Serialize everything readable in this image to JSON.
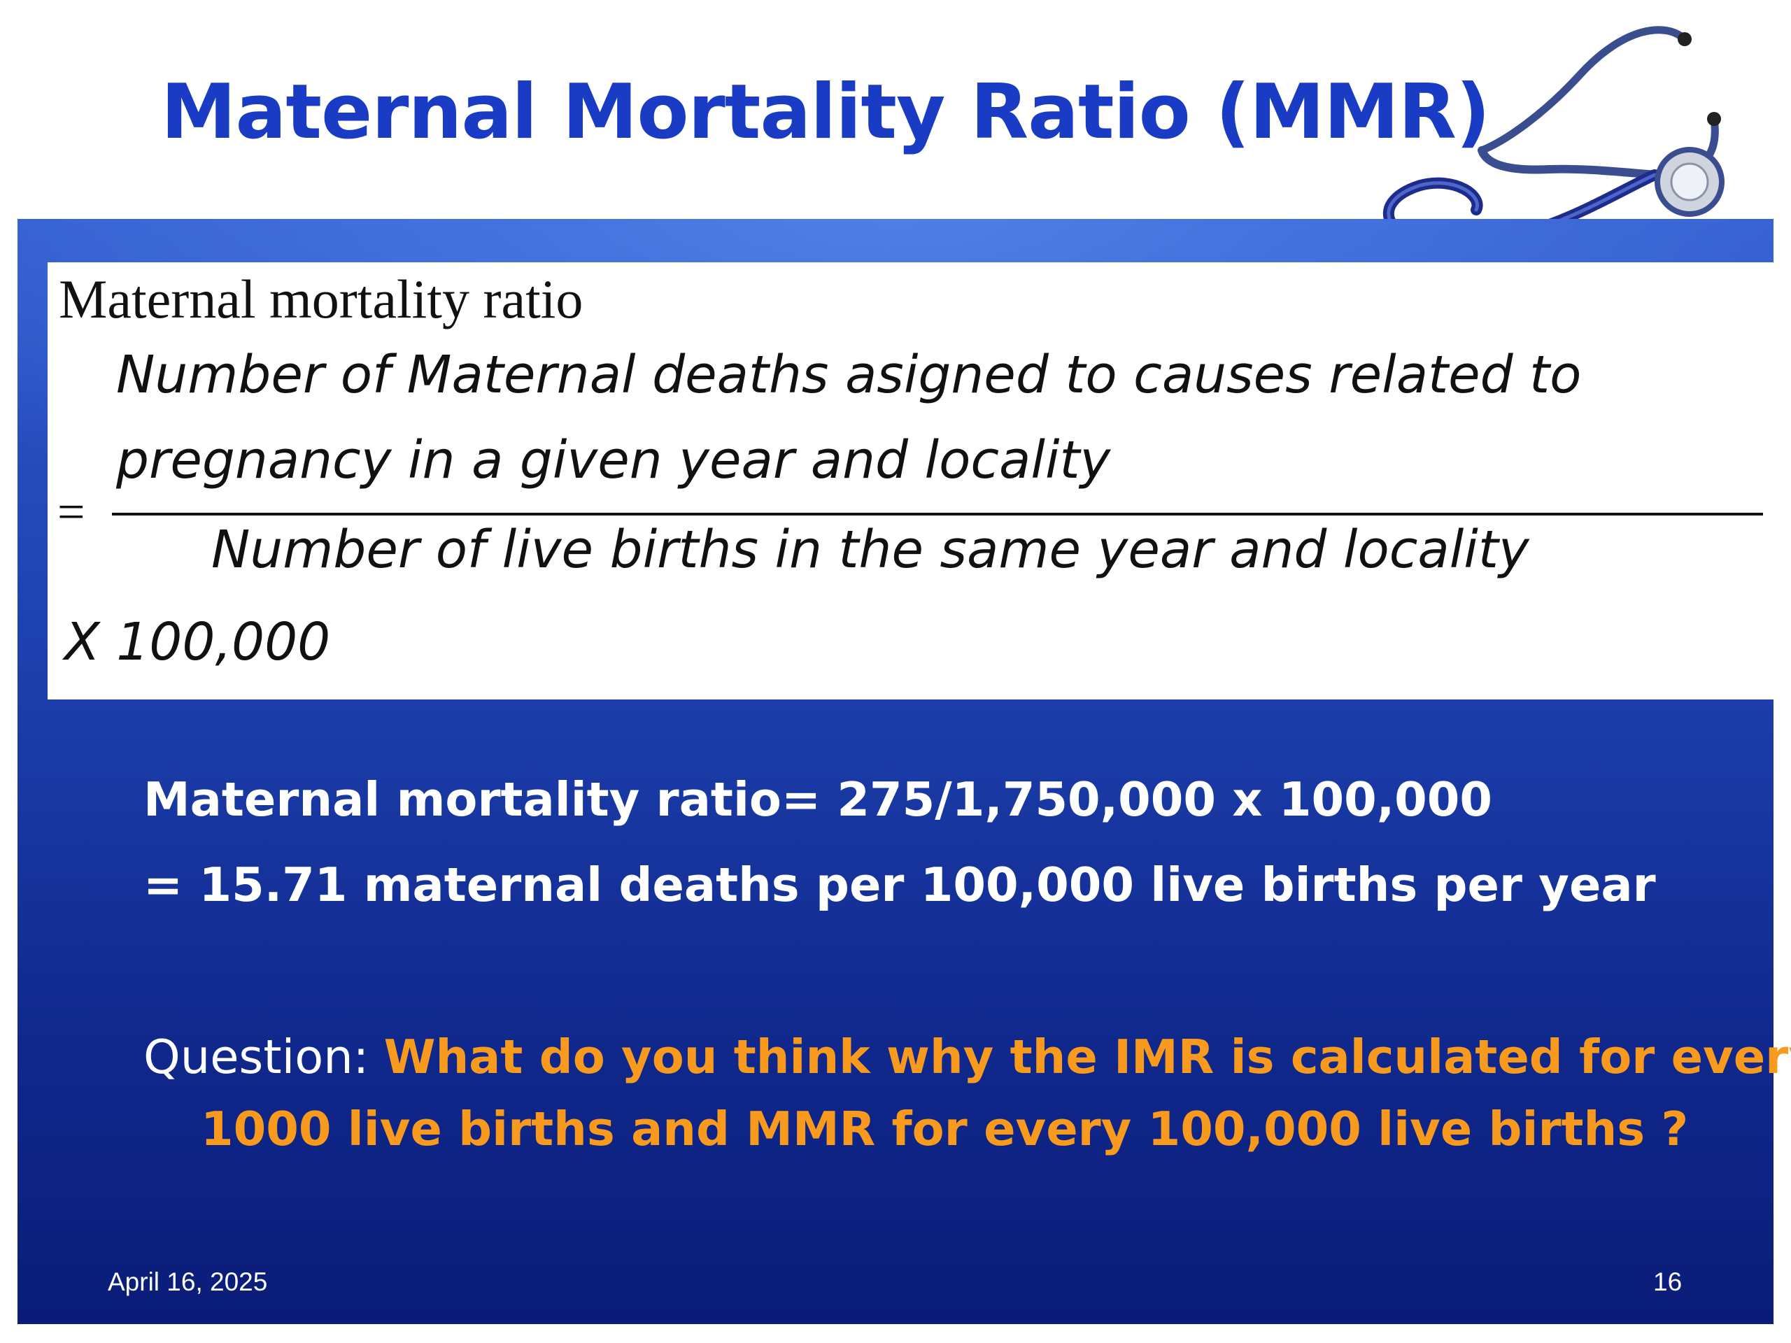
{
  "slide": {
    "title": "Maternal Mortality Ratio (MMR)",
    "formula": {
      "heading": "Maternal mortality ratio",
      "numerator_line1": "Number of Maternal deaths asigned to causes related to",
      "numerator_line2": "pregnancy in a given year and locality",
      "equals": "=",
      "denominator": "Number of live births in the same year and locality",
      "multiplier": "X 100,000"
    },
    "calculation": {
      "line1": "Maternal mortality ratio= 275/1,750,000 x 100,000",
      "line2": "=  15.71 maternal deaths per 100,000 live births per year"
    },
    "question": {
      "label": "Question:",
      "text_line1": "What do you think why the IMR is calculated for every",
      "text_line2": "1000 live births and MMR for every 100,000 live births ?"
    },
    "footer": {
      "date": "April 16, 2025",
      "page_number": "16"
    }
  },
  "icons": [
    "stethoscope-icon"
  ],
  "colors": {
    "title": "#1a3cc4",
    "panel": "#1d40ae",
    "question_highlight": "#f79a1e"
  }
}
